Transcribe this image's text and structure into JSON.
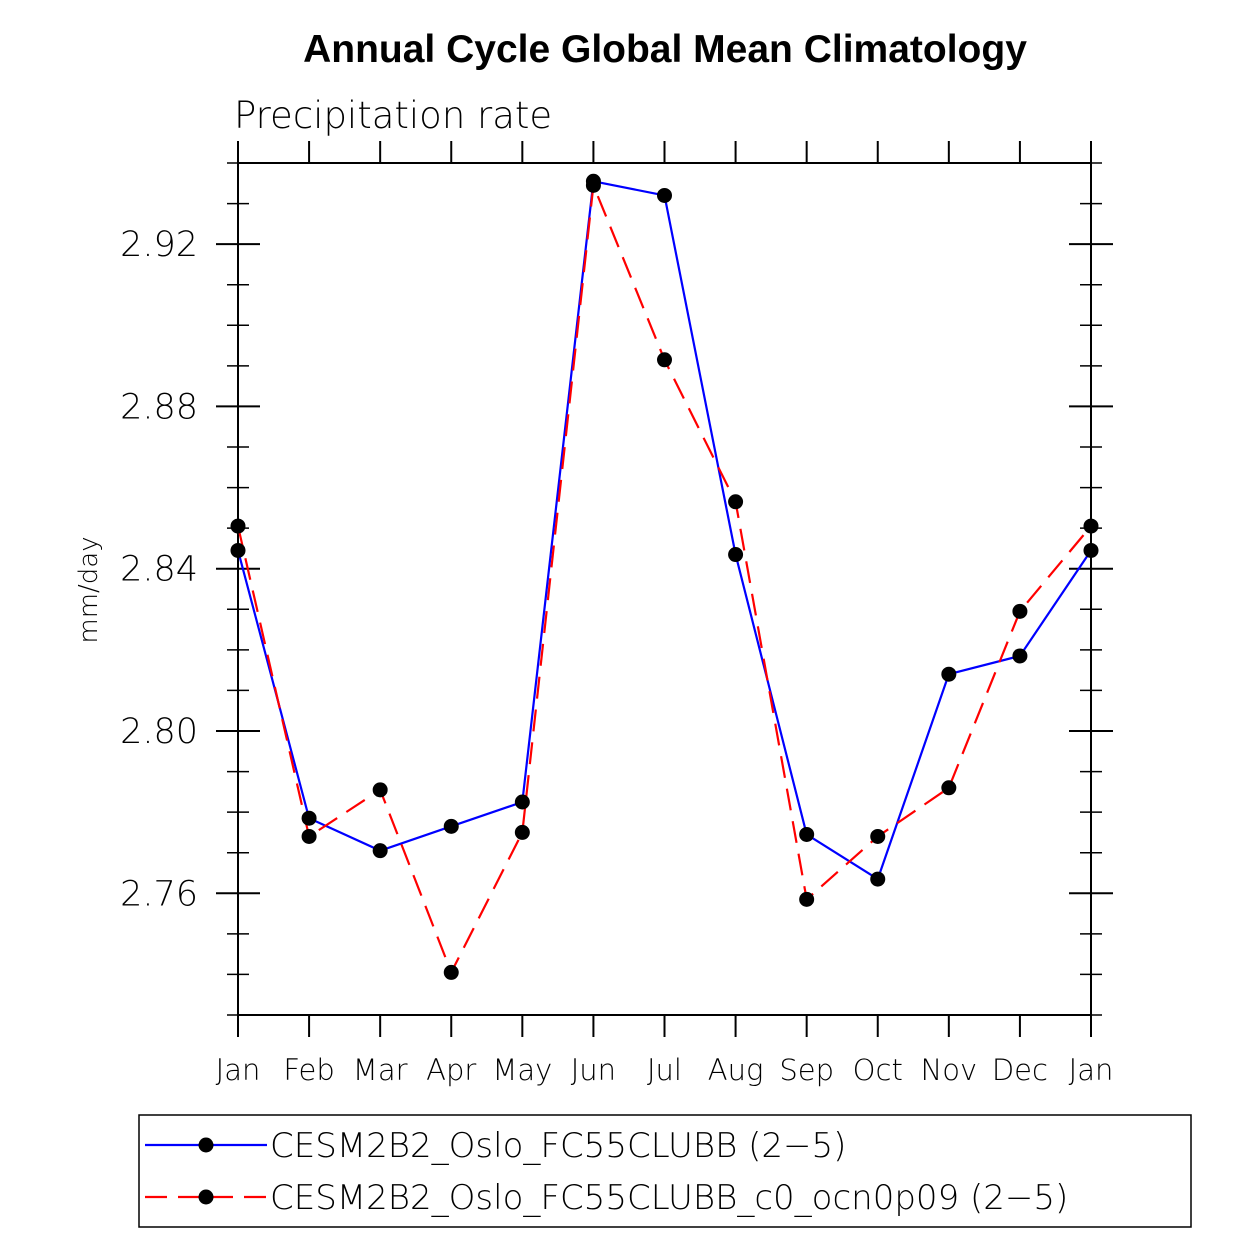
{
  "chart_data": {
    "type": "line",
    "title": "Annual Cycle Global Mean Climatology",
    "subtitle": "Precipitation rate",
    "xlabel": "",
    "ylabel": "mm/day",
    "categories": [
      "Jan",
      "Feb",
      "Mar",
      "Apr",
      "May",
      "Jun",
      "Jul",
      "Aug",
      "Sep",
      "Oct",
      "Nov",
      "Dec",
      "Jan"
    ],
    "ylim": [
      2.73,
      2.94
    ],
    "yticks": [
      "2.76",
      "2.80",
      "2.84",
      "2.88",
      "2.92"
    ],
    "series": [
      {
        "name": "CESM2B2_Oslo_FC55CLUBB (2−5)",
        "color": "#0000ff",
        "dash": "solid",
        "values": [
          2.8445,
          2.7785,
          2.7705,
          2.7765,
          2.7825,
          2.9355,
          2.932,
          2.8435,
          2.7745,
          2.7635,
          2.814,
          2.8185,
          2.8445
        ]
      },
      {
        "name": "CESM2B2_Oslo_FC55CLUBB_c0_ocn0p09 (2−5)",
        "color": "#ff0000",
        "dash": "dashed",
        "values": [
          2.8505,
          2.774,
          2.7855,
          2.7405,
          2.775,
          2.9345,
          2.8915,
          2.8565,
          2.7585,
          2.774,
          2.786,
          2.8295,
          2.8505
        ]
      }
    ],
    "marker_color": "#000000"
  }
}
